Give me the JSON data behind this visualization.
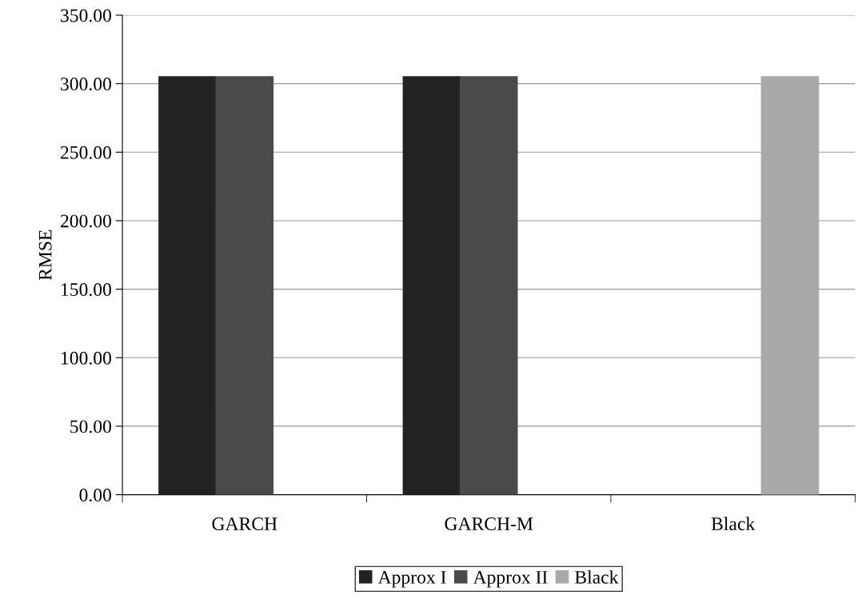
{
  "chart_data": {
    "type": "bar",
    "ylabel": "RMSE",
    "categories": [
      "GARCH",
      "GARCH-M",
      "Black"
    ],
    "series": [
      {
        "name": "Approx I",
        "color": "#222222",
        "values": [
          305,
          305,
          null
        ]
      },
      {
        "name": "Approx II",
        "color": "#4a4a4a",
        "values": [
          305,
          305,
          null
        ]
      },
      {
        "name": "Black",
        "color": "#a9a9a9",
        "values": [
          null,
          null,
          305
        ]
      }
    ],
    "ylim": [
      0,
      350
    ],
    "yticks": [
      {
        "value": 0,
        "label": "0.00"
      },
      {
        "value": 50,
        "label": "50.00"
      },
      {
        "value": 100,
        "label": "100.00"
      },
      {
        "value": 150,
        "label": "150.00"
      },
      {
        "value": 200,
        "label": "200.00"
      },
      {
        "value": 250,
        "label": "250.00"
      },
      {
        "value": 300,
        "label": "300.00"
      },
      {
        "value": 350,
        "label": "350.00"
      }
    ],
    "grid": "y",
    "legend": "bottom"
  }
}
